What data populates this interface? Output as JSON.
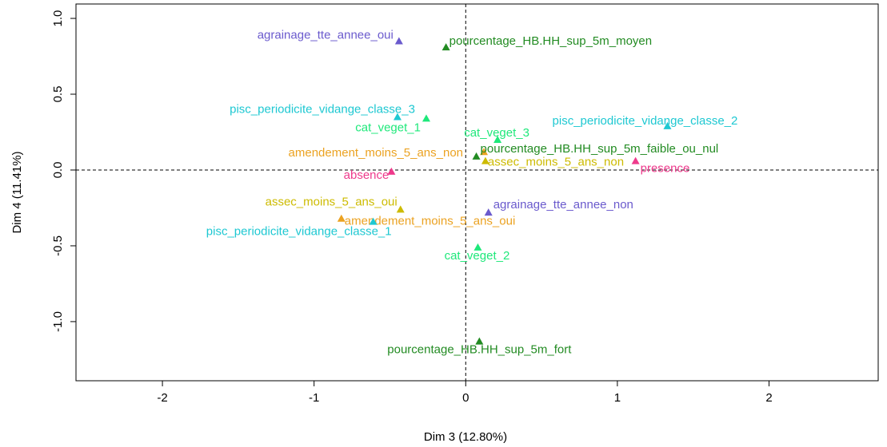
{
  "chart_data": {
    "type": "scatter",
    "xlabel": "Dim 3 (12.80%)",
    "ylabel": "Dim 4 (11.41%)",
    "xlim": [
      -2.57,
      2.72
    ],
    "ylim": [
      -1.39,
      1.095
    ],
    "xticks": [
      -2,
      -1,
      0,
      1,
      2
    ],
    "yticks": [
      {
        "value": -1.0,
        "label": "-1.0"
      },
      {
        "value": -0.5,
        "label": "-0.5"
      },
      {
        "value": 0.0,
        "label": "0.0"
      },
      {
        "value": 0.5,
        "label": "0.5"
      },
      {
        "value": 1.0,
        "label": "1.0"
      }
    ],
    "reference_lines": {
      "x": 0,
      "y": 0
    },
    "points": [
      {
        "label": "agrainage_tte_annee_oui",
        "x": -0.44,
        "y": 0.85,
        "color": "#6a5acd"
      },
      {
        "label": "pourcentage_HB.HH_sup_5m_moyen",
        "x": -0.13,
        "y": 0.81,
        "color": "#228b22"
      },
      {
        "label": "pisc_periodicite_vidange_classe_3",
        "x": -0.45,
        "y": 0.35,
        "color": "#1ec8d2"
      },
      {
        "label": "cat_veget_1",
        "x": -0.26,
        "y": 0.34,
        "color": "#1ee87a"
      },
      {
        "label": "pisc_periodicite_vidange_classe_2",
        "x": 1.33,
        "y": 0.29,
        "color": "#1ec8d2"
      },
      {
        "label": "cat_veget_3",
        "x": 0.21,
        "y": 0.2,
        "color": "#1ee87a"
      },
      {
        "label": "amendement_moins_5_ans_non",
        "x": 0.12,
        "y": 0.12,
        "color": "#eba221"
      },
      {
        "label": "pourcentage_HB.HH_sup_5m_faible_ou_nul",
        "x": 0.07,
        "y": 0.09,
        "color": "#228b22"
      },
      {
        "label": "assec_moins_5_ans_non",
        "x": 0.13,
        "y": 0.06,
        "color": "#cdbb00"
      },
      {
        "label": "presence",
        "x": 1.12,
        "y": 0.06,
        "color": "#ee3a8c"
      },
      {
        "label": "absence",
        "x": -0.49,
        "y": -0.01,
        "color": "#ee3a8c"
      },
      {
        "label": "assec_moins_5_ans_oui",
        "x": -0.43,
        "y": -0.26,
        "color": "#cdbb00"
      },
      {
        "label": "agrainage_tte_annee_non",
        "x": 0.15,
        "y": -0.28,
        "color": "#6a5acd"
      },
      {
        "label": "amendement_moins_5_ans_oui",
        "x": -0.82,
        "y": -0.32,
        "color": "#eba221"
      },
      {
        "label": "pisc_periodicite_vidange_classe_1",
        "x": -0.61,
        "y": -0.34,
        "color": "#1ec8d2"
      },
      {
        "label": "cat_veget_2",
        "x": 0.08,
        "y": -0.51,
        "color": "#1ee87a"
      },
      {
        "label": "pourcentage_HB.HH_sup_5m_fort",
        "x": 0.09,
        "y": -1.13,
        "color": "#228b22"
      }
    ]
  }
}
